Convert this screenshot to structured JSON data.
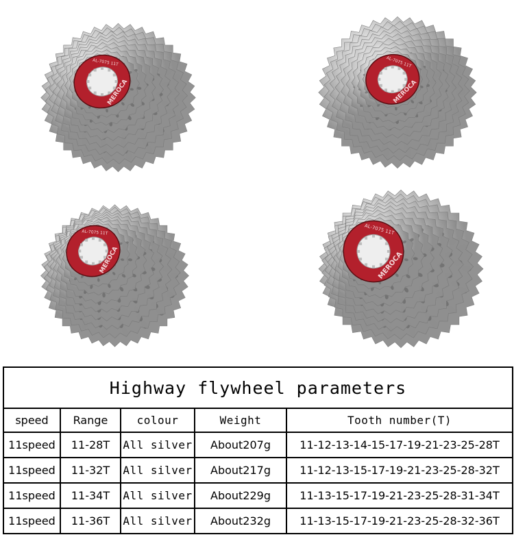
{
  "photos": [
    {
      "name": "cassette-photo-1",
      "ring_text": "MEROCA",
      "ring_sub": "AL-7075 11T"
    },
    {
      "name": "cassette-photo-2",
      "ring_text": "MEROCA",
      "ring_sub": "AL-7075 11T"
    },
    {
      "name": "cassette-photo-3",
      "ring_text": "MEROCA",
      "ring_sub": "AL-7075 11T"
    },
    {
      "name": "cassette-photo-4",
      "ring_text": "MEROCA",
      "ring_sub": "AL-7075 11T"
    }
  ],
  "table": {
    "title": "Highway flywheel parameters",
    "headers": [
      "speed",
      "Range",
      "colour",
      "Weight",
      "Tooth number(T)"
    ],
    "rows": [
      [
        "11speed",
        "11-28T",
        "All silver",
        "About207g",
        "11-12-13-14-15-17-19-21-23-25-28T"
      ],
      [
        "11speed",
        "11-32T",
        "All silver",
        "About217g",
        "11-12-13-15-17-19-21-23-25-28-32T"
      ],
      [
        "11speed",
        "11-34T",
        "All silver",
        "About229g",
        "11-13-15-17-19-21-23-25-28-31-34T"
      ],
      [
        "11speed",
        "11-36T",
        "All silver",
        "About232g",
        "11-13-15-17-19-21-23-25-28-32-36T"
      ]
    ]
  },
  "colors": {
    "silver": "#d9d9d9",
    "lockring": "#b3202c"
  }
}
